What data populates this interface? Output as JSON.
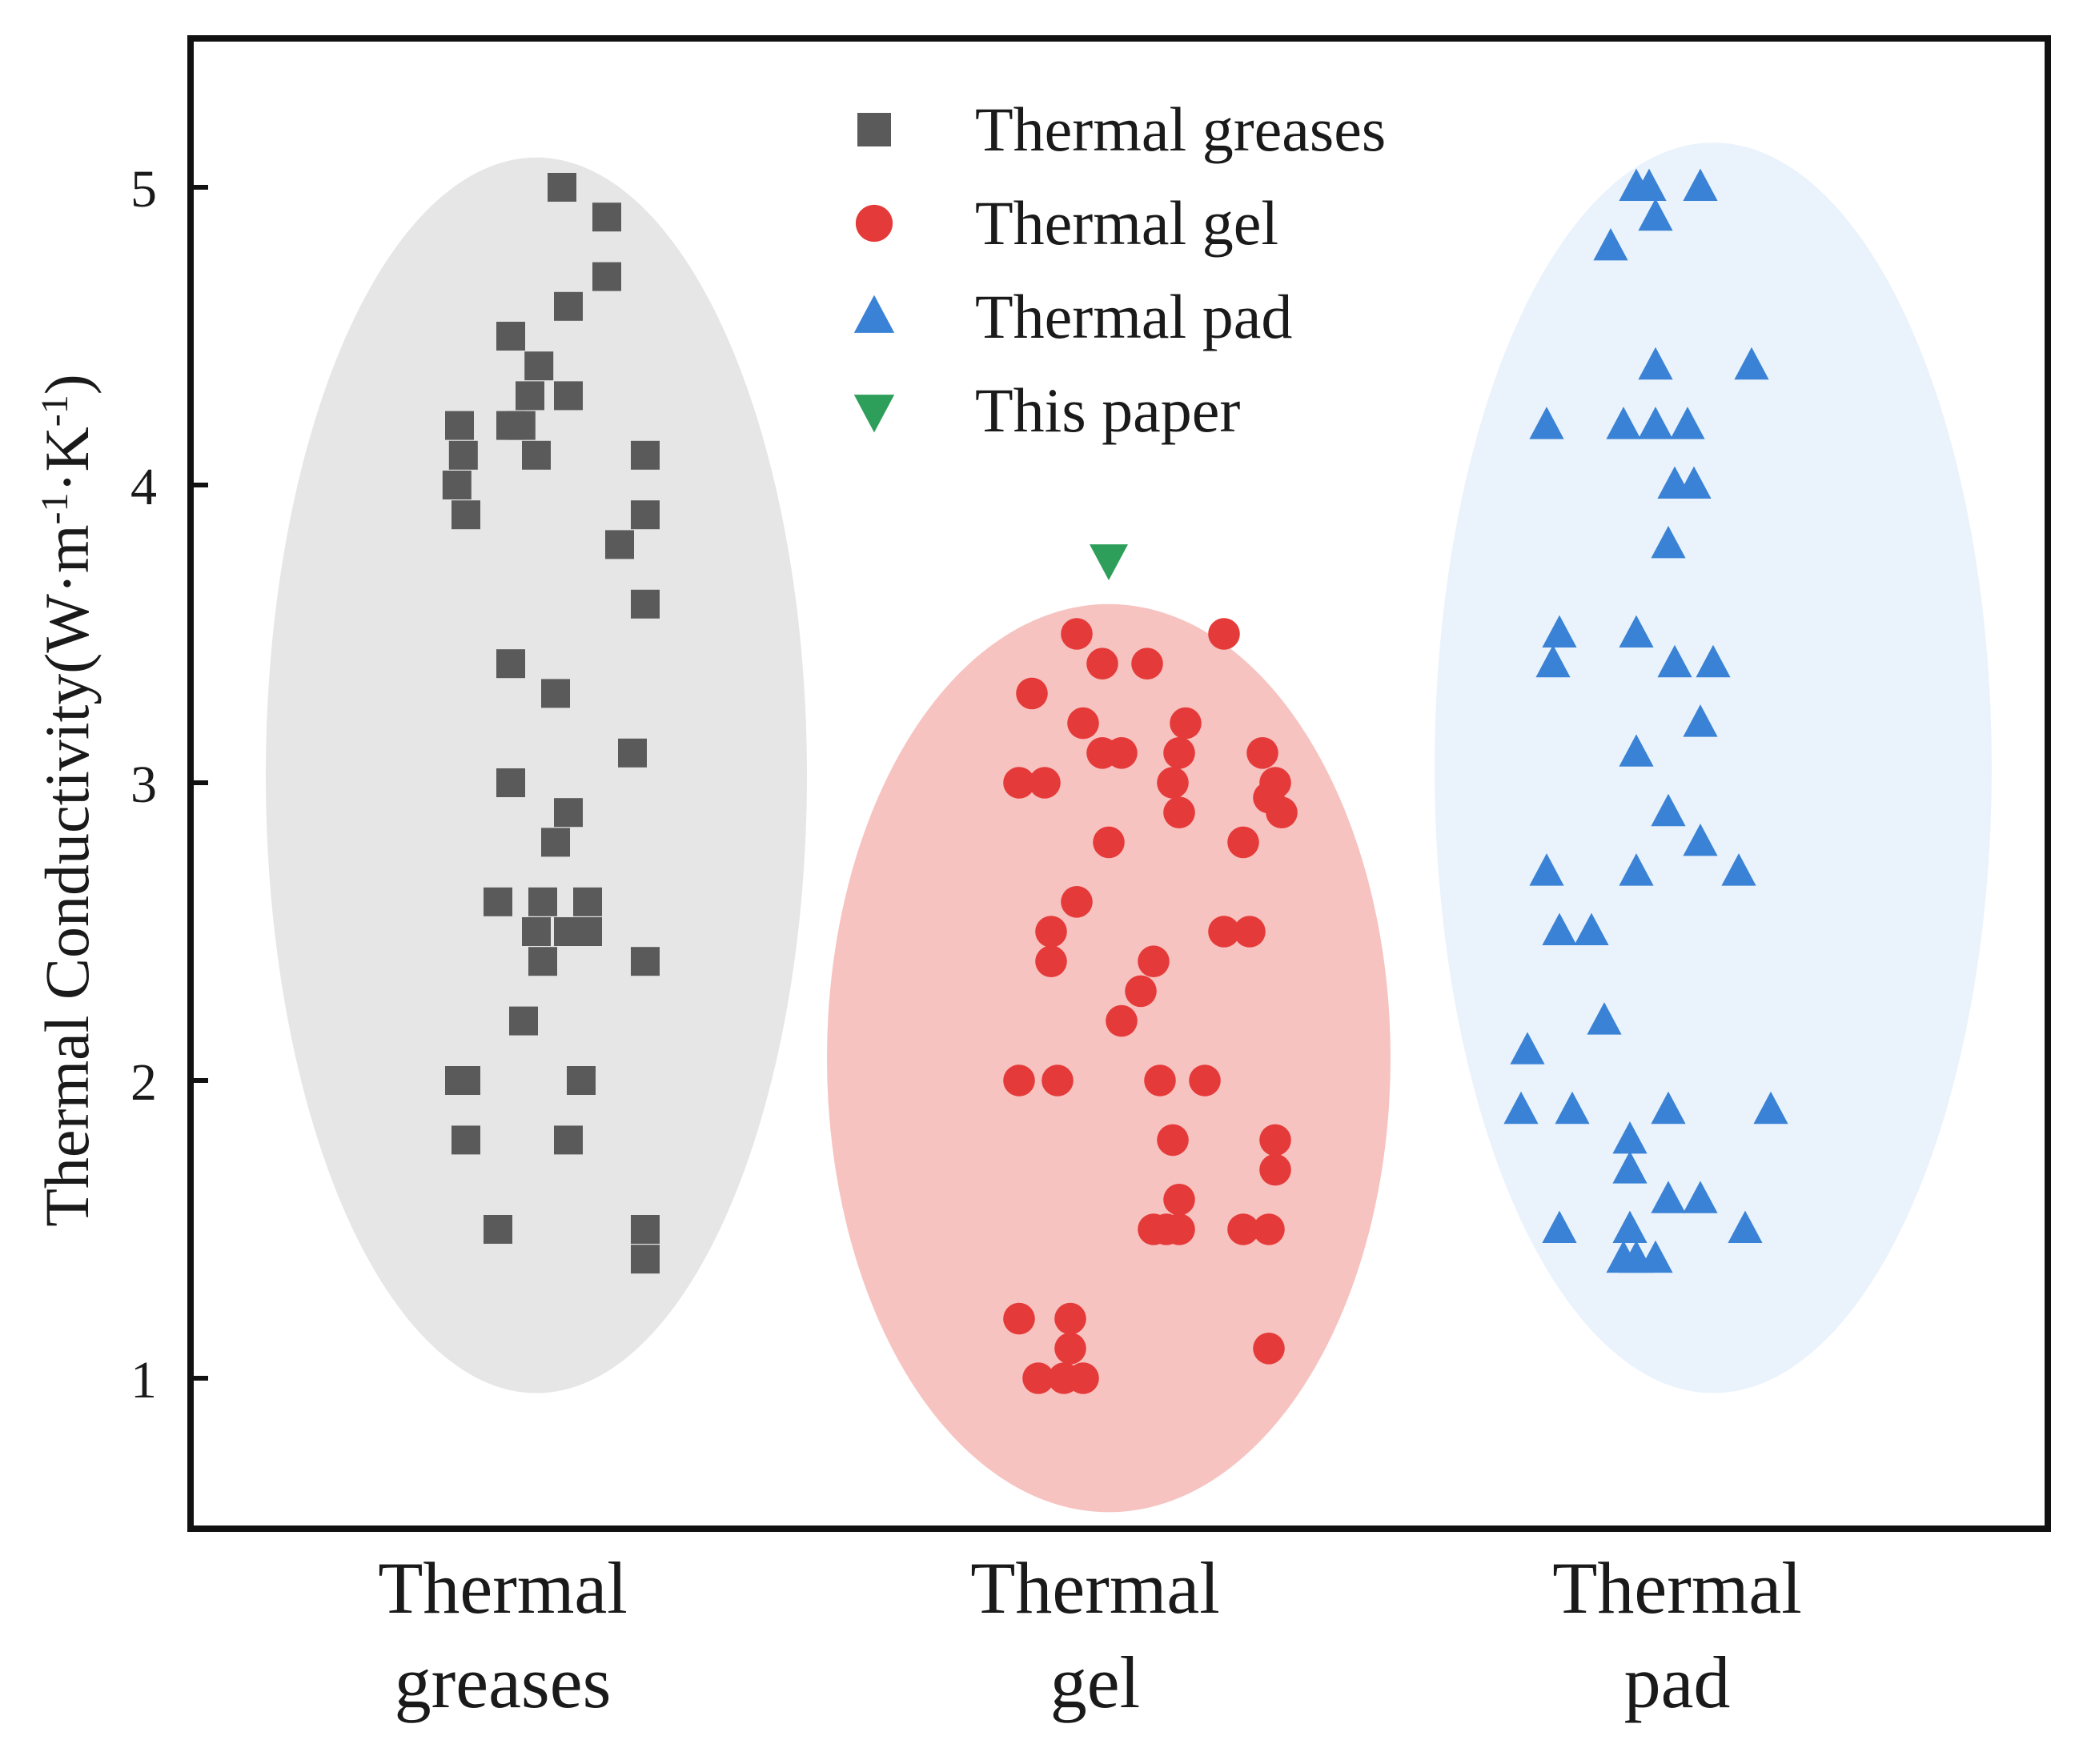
{
  "chart_data": {
    "type": "scatter",
    "title": "",
    "xlabel": "",
    "ylabel": {
      "main": "Thermal Conductivity(W·m",
      "sup1": "-1",
      "mid": "·K",
      "sup2": "-1",
      "end": ")"
    },
    "ylim": [
      0.5,
      5.5
    ],
    "yticks": [
      1,
      2,
      3,
      4,
      5
    ],
    "ytick_labels": [
      "1",
      "2",
      "3",
      "4",
      "5"
    ],
    "categories": [
      {
        "id": "greases",
        "lines": [
          "Thermal",
          "greases"
        ]
      },
      {
        "id": "gel",
        "lines": [
          "Thermal",
          "gel"
        ]
      },
      {
        "id": "pad",
        "lines": [
          "Thermal",
          "pad"
        ]
      }
    ],
    "legend": {
      "position": "top-center",
      "entries": [
        {
          "label": "Thermal greases",
          "marker": "square",
          "color": "#5a5a5a"
        },
        {
          "label": "Thermal gel",
          "marker": "circle",
          "color": "#e53a3a"
        },
        {
          "label": "Thermal pad",
          "marker": "triangle-up",
          "color": "#3a82d6"
        },
        {
          "label": "This paper",
          "marker": "triangle-down",
          "color": "#2e9e5b"
        }
      ]
    },
    "ellipses": [
      {
        "category": "greases",
        "color": "#e6e6e6",
        "y_range": [
          0.95,
          5.1
        ]
      },
      {
        "category": "gel",
        "color": "#f7c3c0",
        "y_range": [
          0.55,
          3.6
        ]
      },
      {
        "category": "pad",
        "color": "#eaf3fc",
        "y_range": [
          0.95,
          5.15
        ]
      }
    ],
    "series": [
      {
        "name": "Thermal greases",
        "marker": "square",
        "color": "#5a5a5a",
        "points": [
          [
            -0.6,
            4.2
          ],
          [
            -0.57,
            4.1
          ],
          [
            -0.62,
            4.0
          ],
          [
            -0.55,
            3.9
          ],
          [
            -0.2,
            4.5
          ],
          [
            -0.2,
            4.2
          ],
          [
            -0.12,
            4.2
          ],
          [
            -0.05,
            4.3
          ],
          [
            0.02,
            4.4
          ],
          [
            0.0,
            4.1
          ],
          [
            0.2,
            5.0
          ],
          [
            0.25,
            4.6
          ],
          [
            0.25,
            4.3
          ],
          [
            0.55,
            4.9
          ],
          [
            0.55,
            4.7
          ],
          [
            0.85,
            4.1
          ],
          [
            0.85,
            3.9
          ],
          [
            0.65,
            3.8
          ],
          [
            0.85,
            3.6
          ],
          [
            -0.2,
            3.4
          ],
          [
            0.15,
            3.3
          ],
          [
            -0.2,
            3.0
          ],
          [
            0.25,
            2.9
          ],
          [
            0.15,
            2.8
          ],
          [
            0.75,
            3.1
          ],
          [
            -0.3,
            2.6
          ],
          [
            0.0,
            2.5
          ],
          [
            0.05,
            2.6
          ],
          [
            0.05,
            2.4
          ],
          [
            0.25,
            2.5
          ],
          [
            0.4,
            2.6
          ],
          [
            0.4,
            2.5
          ],
          [
            0.85,
            2.4
          ],
          [
            -0.1,
            2.2
          ],
          [
            -0.6,
            2.0
          ],
          [
            -0.55,
            2.0
          ],
          [
            -0.55,
            1.8
          ],
          [
            0.35,
            2.0
          ],
          [
            0.25,
            1.8
          ],
          [
            -0.3,
            1.5
          ],
          [
            0.85,
            1.5
          ],
          [
            0.85,
            1.4
          ]
        ]
      },
      {
        "name": "Thermal gel",
        "marker": "circle",
        "color": "#e53a3a",
        "points": [
          [
            -0.25,
            3.5
          ],
          [
            0.9,
            3.5
          ],
          [
            -0.05,
            3.4
          ],
          [
            0.3,
            3.4
          ],
          [
            -0.6,
            3.3
          ],
          [
            -0.2,
            3.2
          ],
          [
            -0.05,
            3.1
          ],
          [
            0.1,
            3.1
          ],
          [
            0.6,
            3.2
          ],
          [
            0.55,
            3.1
          ],
          [
            1.2,
            3.1
          ],
          [
            -0.7,
            3.0
          ],
          [
            -0.5,
            3.0
          ],
          [
            0.5,
            3.0
          ],
          [
            1.3,
            3.0
          ],
          [
            1.25,
            2.95
          ],
          [
            1.35,
            2.9
          ],
          [
            0.0,
            2.8
          ],
          [
            0.55,
            2.9
          ],
          [
            1.05,
            2.8
          ],
          [
            -0.25,
            2.6
          ],
          [
            -0.45,
            2.5
          ],
          [
            -0.45,
            2.4
          ],
          [
            0.35,
            2.4
          ],
          [
            0.25,
            2.3
          ],
          [
            0.9,
            2.5
          ],
          [
            1.1,
            2.5
          ],
          [
            0.1,
            2.2
          ],
          [
            -0.7,
            2.0
          ],
          [
            -0.4,
            2.0
          ],
          [
            0.4,
            2.0
          ],
          [
            0.75,
            2.0
          ],
          [
            0.5,
            1.8
          ],
          [
            1.3,
            1.8
          ],
          [
            1.3,
            1.7
          ],
          [
            0.35,
            1.5
          ],
          [
            0.45,
            1.5
          ],
          [
            0.55,
            1.5
          ],
          [
            0.55,
            1.6
          ],
          [
            1.05,
            1.5
          ],
          [
            1.25,
            1.5
          ],
          [
            -0.7,
            1.2
          ],
          [
            -0.3,
            1.2
          ],
          [
            -0.3,
            1.1
          ],
          [
            -0.55,
            1.0
          ],
          [
            -0.35,
            1.0
          ],
          [
            -0.2,
            1.0
          ],
          [
            1.25,
            1.1
          ]
        ]
      },
      {
        "name": "Thermal pad",
        "marker": "triangle-up",
        "color": "#3a82d6",
        "points": [
          [
            -0.6,
            5.0
          ],
          [
            -0.5,
            5.0
          ],
          [
            -0.45,
            4.9
          ],
          [
            -0.8,
            4.8
          ],
          [
            -0.1,
            5.0
          ],
          [
            -0.45,
            4.4
          ],
          [
            0.3,
            4.4
          ],
          [
            -1.3,
            4.2
          ],
          [
            -0.7,
            4.2
          ],
          [
            -0.45,
            4.2
          ],
          [
            -0.2,
            4.2
          ],
          [
            -0.3,
            4.0
          ],
          [
            -0.15,
            4.0
          ],
          [
            -0.35,
            3.8
          ],
          [
            -1.2,
            3.5
          ],
          [
            -1.25,
            3.4
          ],
          [
            -0.6,
            3.5
          ],
          [
            -0.3,
            3.4
          ],
          [
            0.0,
            3.4
          ],
          [
            -0.1,
            3.2
          ],
          [
            -0.6,
            3.1
          ],
          [
            -0.35,
            2.9
          ],
          [
            -0.1,
            2.8
          ],
          [
            0.2,
            2.7
          ],
          [
            -1.3,
            2.7
          ],
          [
            -0.6,
            2.7
          ],
          [
            -1.2,
            2.5
          ],
          [
            -0.95,
            2.5
          ],
          [
            -0.85,
            2.2
          ],
          [
            -1.45,
            2.1
          ],
          [
            -1.5,
            1.9
          ],
          [
            -1.1,
            1.9
          ],
          [
            -0.35,
            1.9
          ],
          [
            0.45,
            1.9
          ],
          [
            -0.65,
            1.8
          ],
          [
            -0.65,
            1.7
          ],
          [
            -0.35,
            1.6
          ],
          [
            -0.1,
            1.6
          ],
          [
            0.25,
            1.5
          ],
          [
            -1.2,
            1.5
          ],
          [
            -0.65,
            1.5
          ],
          [
            -0.7,
            1.4
          ],
          [
            -0.6,
            1.4
          ],
          [
            -0.45,
            1.4
          ]
        ]
      },
      {
        "name": "This paper",
        "marker": "triangle-down",
        "color": "#2e9e5b",
        "points": [
          [
            0.0,
            3.75
          ]
        ]
      }
    ]
  }
}
